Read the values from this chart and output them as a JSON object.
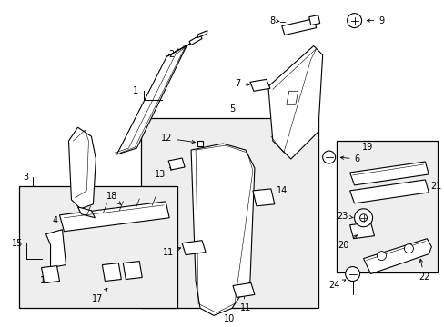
{
  "bg_color": "#ffffff",
  "fig_width": 4.89,
  "fig_height": 3.6,
  "dpi": 100
}
